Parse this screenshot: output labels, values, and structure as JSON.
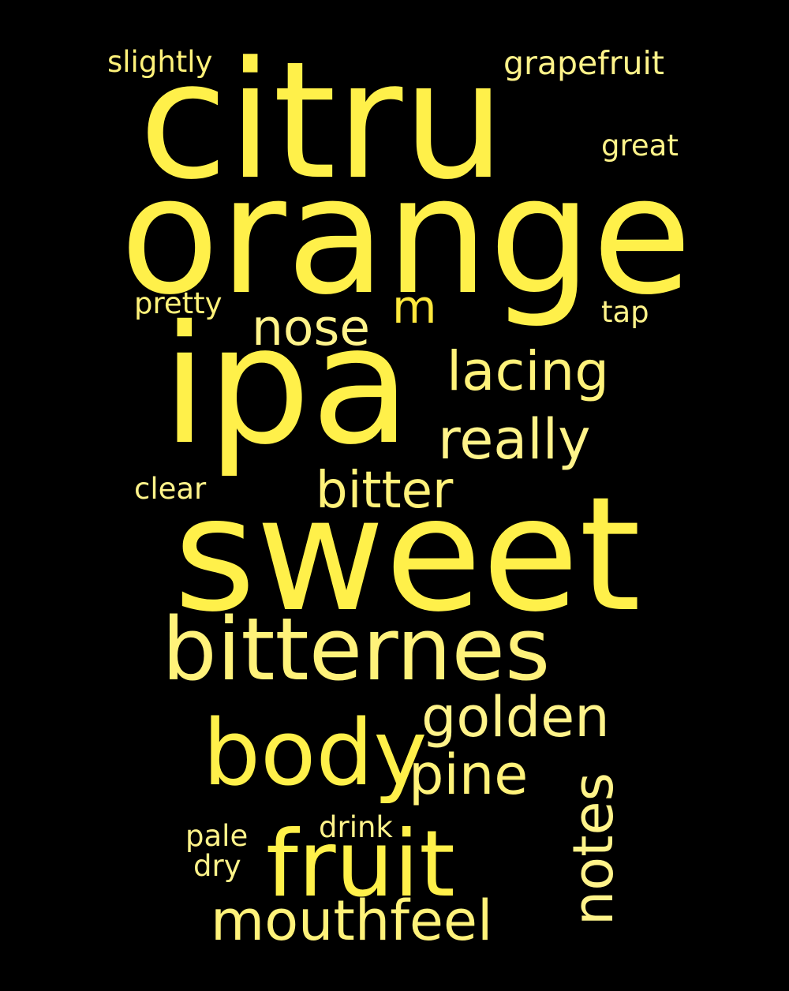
{
  "background": "#000000",
  "palette": [
    "#fff04a",
    "#fff27a",
    "#fff38a",
    "#ffe83c"
  ],
  "words": {
    "citru": "citru",
    "orange": "orange",
    "ipa": "ipa",
    "sweet": "sweet",
    "bitternes": "bitternes",
    "body": "body",
    "fruit": "fruit",
    "notes": "notes",
    "mouthfeel": "mouthfeel",
    "golden": "golden",
    "pine": "pine",
    "lacing": "lacing",
    "really": "really",
    "bitter": "bitter",
    "nose": "nose",
    "m": "m",
    "slightly": "slightly",
    "grapefruit": "grapefruit",
    "great": "great",
    "pretty": "pretty",
    "tap": "tap",
    "clear": "clear",
    "pale": "pale",
    "dry": "dry",
    "drink": "drink"
  }
}
